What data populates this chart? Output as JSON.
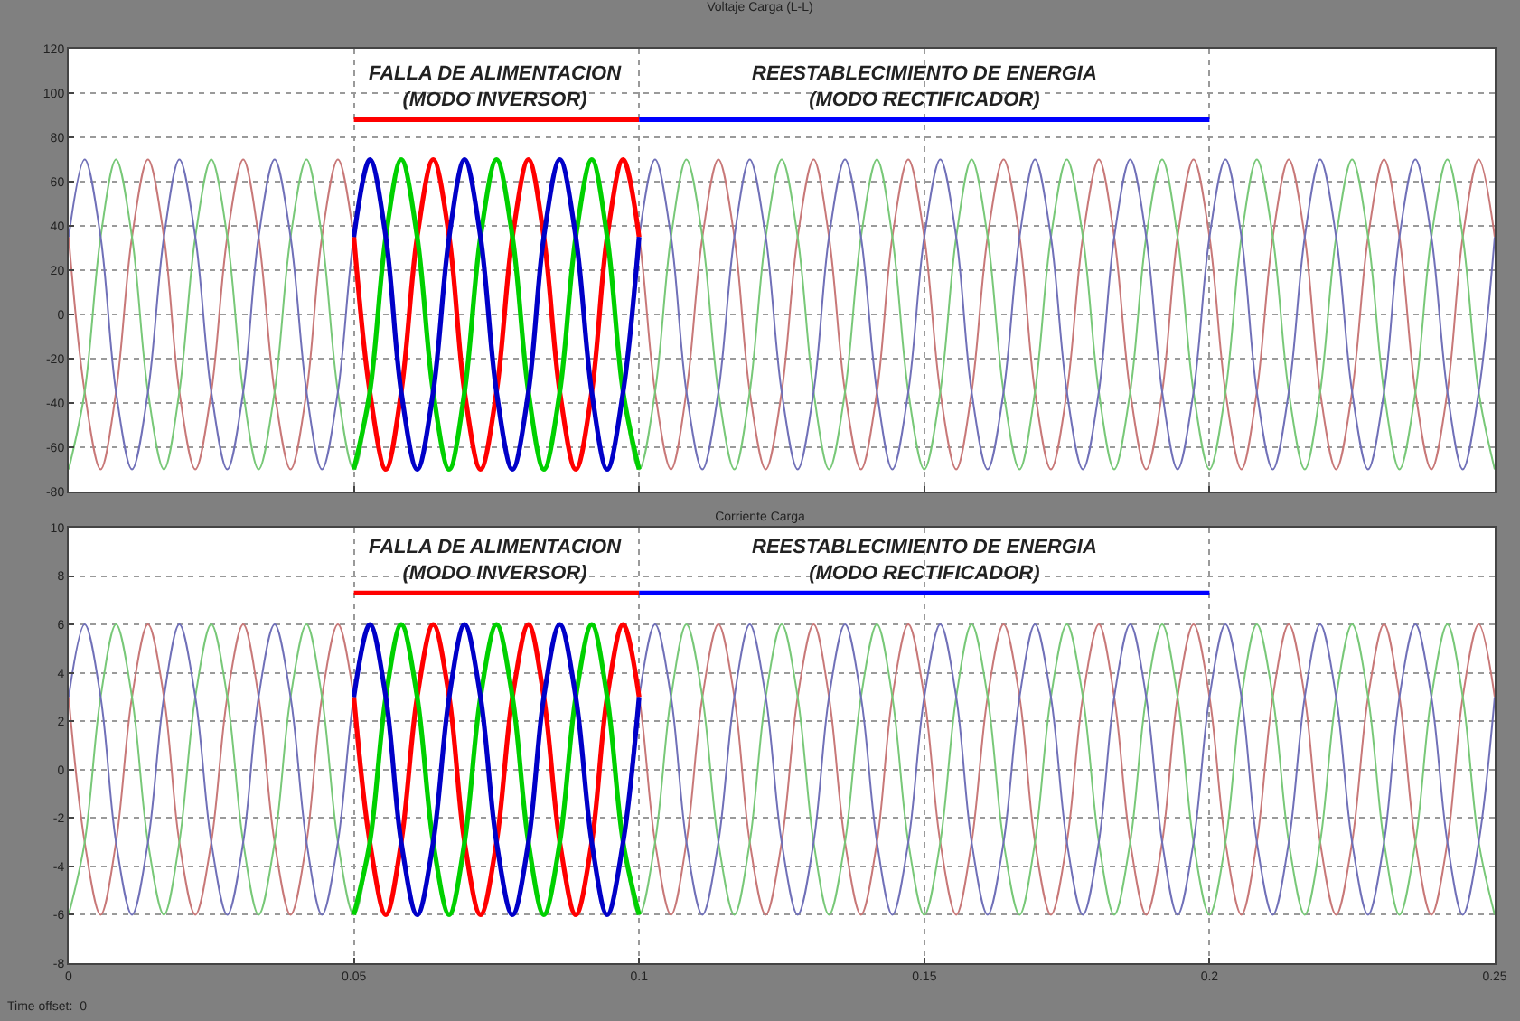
{
  "chart_data": [
    {
      "type": "line",
      "title": "Voltaje Carga (L-L)",
      "xlim": [
        0,
        0.25
      ],
      "xticks": [
        0,
        0.05,
        0.1,
        0.15,
        0.2,
        0.25
      ],
      "ylim": [
        -80,
        120
      ],
      "yticks": [
        -80,
        -60,
        -40,
        -20,
        0,
        20,
        40,
        60,
        80,
        100,
        120
      ],
      "grid": true,
      "tick_labels": "y",
      "x": [
        0,
        0.0028,
        0.0056,
        0.0083,
        0.0111,
        0.0139,
        0.0167,
        0.0194,
        0.0222,
        0.025,
        0.0278,
        0.0306,
        0.0333,
        0.0361,
        0.0389,
        0.0417,
        0.0444,
        0.0472,
        0.05,
        0.0528,
        0.0556,
        0.0583,
        0.0611,
        0.0639,
        0.0667,
        0.0694,
        0.0722,
        0.075,
        0.0778,
        0.0806,
        0.0833,
        0.0861,
        0.0889,
        0.0917,
        0.0944,
        0.0972,
        0.1,
        0.1028,
        0.1056,
        0.1083,
        0.1111,
        0.1139,
        0.1167,
        0.1194,
        0.1222,
        0.125,
        0.1278,
        0.1306,
        0.1333,
        0.1361,
        0.1389,
        0.1417,
        0.1444,
        0.1472,
        0.15,
        0.1528,
        0.1556,
        0.1583,
        0.1611,
        0.1639,
        0.1667,
        0.1694,
        0.1722,
        0.175,
        0.1778,
        0.1806,
        0.1833,
        0.1861,
        0.1889,
        0.1917,
        0.1944,
        0.1972,
        0.2,
        0.2028,
        0.2056,
        0.2083,
        0.2111,
        0.2139,
        0.2167,
        0.2194,
        0.2222,
        0.225,
        0.2278,
        0.2306,
        0.2333,
        0.2361,
        0.2389,
        0.2417,
        0.2444,
        0.2472,
        0.25
      ],
      "series": [
        {
          "color": "#c87878",
          "values": [
            35,
            -35,
            -70,
            -35,
            35,
            70,
            35,
            -35,
            -70,
            -35,
            35,
            70,
            35,
            -35,
            -70,
            -35,
            35,
            70,
            35,
            -35,
            -70,
            -35,
            35,
            70,
            35,
            -35,
            -70,
            -35,
            35,
            70,
            35,
            -35,
            -70,
            -35,
            35,
            70,
            35,
            -35,
            -70,
            -35,
            35,
            70,
            35,
            -35,
            -70,
            -35,
            35,
            70,
            35,
            -35,
            -70,
            -35,
            35,
            70,
            35,
            -35,
            -70,
            -35,
            35,
            70,
            35,
            -35,
            -70,
            -35,
            35,
            70,
            35,
            -35,
            -70,
            -35,
            35,
            70,
            35,
            -35,
            -70,
            -35,
            35,
            70,
            35,
            -35,
            -70,
            -35,
            35,
            70,
            35,
            -35,
            -70,
            -35,
            35,
            70,
            35
          ]
        },
        {
          "color": "#78c878",
          "values": [
            -70,
            -35,
            35,
            70,
            35,
            -35,
            -70,
            -35,
            35,
            70,
            35,
            -35,
            -70,
            -35,
            35,
            70,
            35,
            -35,
            -70,
            -35,
            35,
            70,
            35,
            -35,
            -70,
            -35,
            35,
            70,
            35,
            -35,
            -70,
            -35,
            35,
            70,
            35,
            -35,
            -70,
            -35,
            35,
            70,
            35,
            -35,
            -70,
            -35,
            35,
            70,
            35,
            -35,
            -70,
            -35,
            35,
            70,
            35,
            -35,
            -70,
            -35,
            35,
            70,
            35,
            -35,
            -70,
            -35,
            35,
            70,
            35,
            -35,
            -70,
            -35,
            35,
            70,
            35,
            -35,
            -70,
            -35,
            35,
            70,
            35,
            -35,
            -70,
            -35,
            35,
            70,
            35,
            -35,
            -70,
            -35,
            35,
            70,
            35,
            -35,
            -70
          ]
        },
        {
          "color": "#7070b8",
          "values": [
            35,
            70,
            35,
            -35,
            -70,
            -35,
            35,
            70,
            35,
            -35,
            -70,
            -35,
            35,
            70,
            35,
            -35,
            -70,
            -35,
            35,
            70,
            35,
            -35,
            -70,
            -35,
            35,
            70,
            35,
            -35,
            -70,
            -35,
            35,
            70,
            35,
            -35,
            -70,
            -35,
            35,
            70,
            35,
            -35,
            -70,
            -35,
            35,
            70,
            35,
            -35,
            -70,
            -35,
            35,
            70,
            35,
            -35,
            -70,
            -35,
            35,
            70,
            35,
            -35,
            -70,
            -35,
            35,
            70,
            35,
            -35,
            -70,
            -35,
            35,
            70,
            35,
            -35,
            -70,
            -35,
            35,
            70,
            35,
            -35,
            -70,
            -35,
            35,
            70,
            35,
            -35,
            -70,
            -35,
            35,
            70,
            35,
            -35,
            -70,
            -35,
            35
          ]
        },
        {
          "color": "#ff0000",
          "x": [
            0.05,
            0.0528,
            0.0556,
            0.0583,
            0.0611,
            0.0639,
            0.0667,
            0.0694,
            0.0722,
            0.075,
            0.0778,
            0.0806,
            0.0833,
            0.0861,
            0.0889,
            0.0917,
            0.0944,
            0.0972,
            0.1
          ],
          "values": [
            35,
            -35,
            -70,
            -35,
            35,
            70,
            35,
            -35,
            -70,
            -35,
            35,
            70,
            35,
            -35,
            -70,
            -35,
            35,
            70,
            35
          ]
        },
        {
          "color": "#00d000",
          "x": [
            0.05,
            0.0528,
            0.0556,
            0.0583,
            0.0611,
            0.0639,
            0.0667,
            0.0694,
            0.0722,
            0.075,
            0.0778,
            0.0806,
            0.0833,
            0.0861,
            0.0889,
            0.0917,
            0.0944,
            0.0972,
            0.1
          ],
          "values": [
            -70,
            -35,
            35,
            70,
            35,
            -35,
            -70,
            -35,
            35,
            70,
            35,
            -35,
            -70,
            -35,
            35,
            70,
            35,
            -35,
            -70
          ]
        },
        {
          "color": "#0000c8",
          "x": [
            0.05,
            0.0528,
            0.0556,
            0.0583,
            0.0611,
            0.0639,
            0.0667,
            0.0694,
            0.0722,
            0.075,
            0.0778,
            0.0806,
            0.0833,
            0.0861,
            0.0889,
            0.0917,
            0.0944,
            0.0972,
            0.1
          ],
          "values": [
            35,
            70,
            35,
            -35,
            -70,
            -35,
            35,
            70,
            35,
            -35,
            -70,
            -35,
            35,
            70,
            35,
            -35,
            -70,
            -35,
            35
          ]
        },
        {
          "color": "#ff0000",
          "x": [
            0.05,
            0.1
          ],
          "values": [
            88,
            88
          ]
        },
        {
          "color": "#0000ff",
          "x": [
            0.1,
            0.2
          ],
          "values": [
            88,
            88
          ]
        }
      ],
      "annotations": [
        "FALLA DE ALIMENTACION\n(MODO INVERSOR)",
        "REESTABLECIMIENTO DE ENERGIA\n(MODO RECTIFICADOR)"
      ]
    },
    {
      "type": "line",
      "title": "Corriente Carga",
      "xlim": [
        0,
        0.25
      ],
      "xticks": [
        0,
        0.05,
        0.1,
        0.15,
        0.2,
        0.25
      ],
      "ylim": [
        -8,
        10
      ],
      "yticks": [
        -8,
        -6,
        -4,
        -2,
        0,
        2,
        4,
        6,
        8,
        10
      ],
      "grid": true,
      "x": [
        0,
        0.0028,
        0.0056,
        0.0083,
        0.0111,
        0.0139,
        0.0167,
        0.0194,
        0.0222,
        0.025,
        0.0278,
        0.0306,
        0.0333,
        0.0361,
        0.0389,
        0.0417,
        0.0444,
        0.0472,
        0.05,
        0.0528,
        0.0556,
        0.0583,
        0.0611,
        0.0639,
        0.0667,
        0.0694,
        0.0722,
        0.075,
        0.0778,
        0.0806,
        0.0833,
        0.0861,
        0.0889,
        0.0917,
        0.0944,
        0.0972,
        0.1,
        0.1028,
        0.1056,
        0.1083,
        0.1111,
        0.1139,
        0.1167,
        0.1194,
        0.1222,
        0.125,
        0.1278,
        0.1306,
        0.1333,
        0.1361,
        0.1389,
        0.1417,
        0.1444,
        0.1472,
        0.15,
        0.1528,
        0.1556,
        0.1583,
        0.1611,
        0.1639,
        0.1667,
        0.1694,
        0.1722,
        0.175,
        0.1778,
        0.1806,
        0.1833,
        0.1861,
        0.1889,
        0.1917,
        0.1944,
        0.1972,
        0.2,
        0.2028,
        0.2056,
        0.2083,
        0.2111,
        0.2139,
        0.2167,
        0.2194,
        0.2222,
        0.225,
        0.2278,
        0.2306,
        0.2333,
        0.2361,
        0.2389,
        0.2417,
        0.2444,
        0.2472,
        0.25
      ],
      "series": [
        {
          "color": "#c87878",
          "values": [
            3,
            -3,
            -6,
            -3,
            3,
            6,
            3,
            -3,
            -6,
            -3,
            3,
            6,
            3,
            -3,
            -6,
            -3,
            3,
            6,
            3,
            -3,
            -6,
            -3,
            3,
            6,
            3,
            -3,
            -6,
            -3,
            3,
            6,
            3,
            -3,
            -6,
            -3,
            3,
            6,
            3,
            -3,
            -6,
            -3,
            3,
            6,
            3,
            -3,
            -6,
            -3,
            3,
            6,
            3,
            -3,
            -6,
            -3,
            3,
            6,
            3,
            -3,
            -6,
            -3,
            3,
            6,
            3,
            -3,
            -6,
            -3,
            3,
            6,
            3,
            -3,
            -6,
            -3,
            3,
            6,
            3,
            -3,
            -6,
            -3,
            3,
            6,
            3,
            -3,
            -6,
            -3,
            3,
            6,
            3,
            -3,
            -6,
            -3,
            3,
            6,
            3
          ]
        },
        {
          "color": "#78c878",
          "values": [
            -6,
            -3,
            3,
            6,
            3,
            -3,
            -6,
            -3,
            3,
            6,
            3,
            -3,
            -6,
            -3,
            3,
            6,
            3,
            -3,
            -6,
            -3,
            3,
            6,
            3,
            -3,
            -6,
            -3,
            3,
            6,
            3,
            -3,
            -6,
            -3,
            3,
            6,
            3,
            -3,
            -6,
            -3,
            3,
            6,
            3,
            -3,
            -6,
            -3,
            3,
            6,
            3,
            -3,
            -6,
            -3,
            3,
            6,
            3,
            -3,
            -6,
            -3,
            3,
            6,
            3,
            -3,
            -6,
            -3,
            3,
            6,
            3,
            -3,
            -6,
            -3,
            3,
            6,
            3,
            -3,
            -6,
            -3,
            3,
            6,
            3,
            -3,
            -6,
            -3,
            3,
            6,
            3,
            -3,
            -6,
            -3,
            3,
            6,
            3,
            -3,
            -6
          ]
        },
        {
          "color": "#7070b8",
          "values": [
            3,
            6,
            3,
            -3,
            -6,
            -3,
            3,
            6,
            3,
            -3,
            -6,
            -3,
            3,
            6,
            3,
            -3,
            -6,
            -3,
            3,
            6,
            3,
            -3,
            -6,
            -3,
            3,
            6,
            3,
            -3,
            -6,
            -3,
            3,
            6,
            3,
            -3,
            -6,
            -3,
            3,
            6,
            3,
            -3,
            -6,
            -3,
            3,
            6,
            3,
            -3,
            -6,
            -3,
            3,
            6,
            3,
            -3,
            -6,
            -3,
            3,
            6,
            3,
            -3,
            -6,
            -3,
            3,
            6,
            3,
            -3,
            -6,
            -3,
            3,
            6,
            3,
            -3,
            -6,
            -3,
            3,
            6,
            3,
            -3,
            -6,
            -3,
            3,
            6,
            3,
            -3,
            -6,
            -3,
            3,
            6,
            3,
            -3,
            -6,
            -3,
            3
          ]
        },
        {
          "color": "#ff0000",
          "x": [
            0.05,
            0.0528,
            0.0556,
            0.0583,
            0.0611,
            0.0639,
            0.0667,
            0.0694,
            0.0722,
            0.075,
            0.0778,
            0.0806,
            0.0833,
            0.0861,
            0.0889,
            0.0917,
            0.0944,
            0.0972,
            0.1
          ],
          "values": [
            3,
            -3,
            -6,
            -3,
            3,
            6,
            3,
            -3,
            -6,
            -3,
            3,
            6,
            3,
            -3,
            -6,
            -3,
            3,
            6,
            3
          ]
        },
        {
          "color": "#00d000",
          "x": [
            0.05,
            0.0528,
            0.0556,
            0.0583,
            0.0611,
            0.0639,
            0.0667,
            0.0694,
            0.0722,
            0.075,
            0.0778,
            0.0806,
            0.0833,
            0.0861,
            0.0889,
            0.0917,
            0.0944,
            0.0972,
            0.1
          ],
          "values": [
            -6,
            -3,
            3,
            6,
            3,
            -3,
            -6,
            -3,
            3,
            6,
            3,
            -3,
            -6,
            -3,
            3,
            6,
            3,
            -3,
            -6
          ]
        },
        {
          "color": "#0000c8",
          "x": [
            0.05,
            0.0528,
            0.0556,
            0.0583,
            0.0611,
            0.0639,
            0.0667,
            0.0694,
            0.0722,
            0.075,
            0.0778,
            0.0806,
            0.0833,
            0.0861,
            0.0889,
            0.0917,
            0.0944,
            0.0972,
            0.1
          ],
          "values": [
            3,
            6,
            3,
            -3,
            -6,
            -3,
            3,
            6,
            3,
            -3,
            -6,
            -3,
            3,
            6,
            3,
            -3,
            -6,
            -3,
            3
          ]
        },
        {
          "color": "#ff0000",
          "x": [
            0.05,
            0.1
          ],
          "values": [
            7.3,
            7.3
          ]
        },
        {
          "color": "#0000ff",
          "x": [
            0.1,
            0.2
          ],
          "values": [
            7.3,
            7.3
          ]
        }
      ],
      "annotations": [
        "FALLA DE ALIMENTACION\n(MODO INVERSOR)",
        "REESTABLECIMIENTO DE ENERGIA\n(MODO RECTIFICADOR)",
        "Time offset:  0"
      ]
    }
  ]
}
